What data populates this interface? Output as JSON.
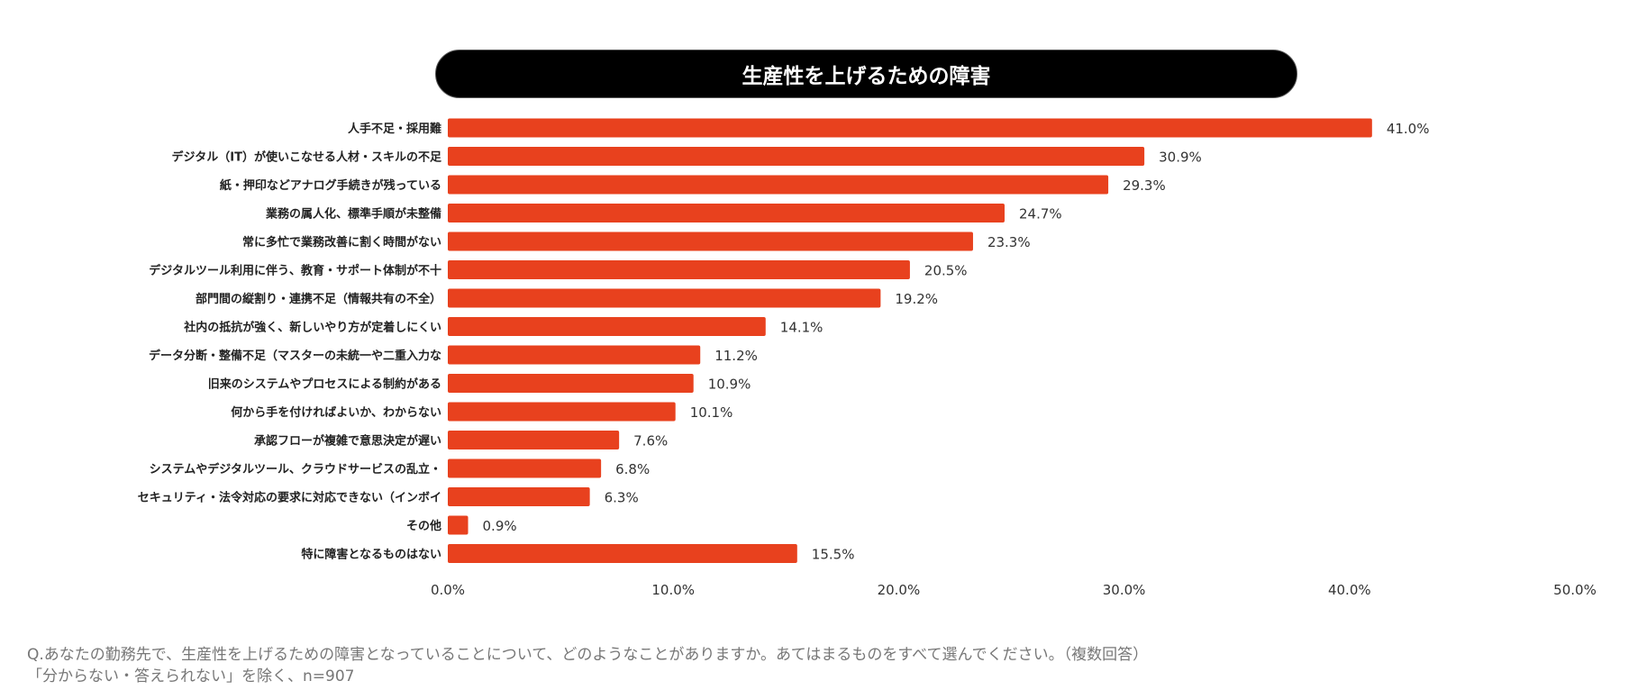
{
  "chart_data": {
    "type": "bar",
    "orientation": "horizontal",
    "title": "生産性を上げるための障害",
    "categories": [
      "人手不足・採用難",
      "デジタル（IT）が使いこなせる人材・スキルの不足",
      "紙・押印などアナログ手続きが残っている",
      "業務の属人化、標準手順が未整備",
      "常に多忙で業務改善に割く時間がない",
      "デジタルツール利用に伴う、教育・サポート体制が不十",
      "部門間の縦割り・連携不足（情報共有の不全）",
      "社内の抵抗が強く、新しいやり方が定着しにくい",
      "データ分断・整備不足（マスターの未統一や二重入力な",
      "旧来のシステムやプロセスによる制約がある",
      "何から手を付ければよいか、わからない",
      "承認フローが複雑で意思決定が遅い",
      "システムやデジタルツール、クラウドサービスの乱立・",
      "セキュリティ・法令対応の要求に対応できない（インボイ",
      "その他",
      "特に障害となるものはない"
    ],
    "values": [
      41.0,
      30.9,
      29.3,
      24.7,
      23.3,
      20.5,
      19.2,
      14.1,
      11.2,
      10.9,
      10.1,
      7.6,
      6.8,
      6.3,
      0.9,
      15.5
    ],
    "value_labels": [
      "41.0%",
      "30.9%",
      "29.3%",
      "24.7%",
      "23.3%",
      "20.5%",
      "19.2%",
      "14.1%",
      "11.2%",
      "10.9%",
      "10.1%",
      "7.6%",
      "6.8%",
      "6.3%",
      "0.9%",
      "15.5%"
    ],
    "xlim": [
      0,
      50
    ],
    "xticks": [
      "0.0%",
      "10.0%",
      "20.0%",
      "30.0%",
      "40.0%",
      "50.0%"
    ],
    "grid": false,
    "bar_color": "#E8411E"
  },
  "footnotes": [
    "Q.あなたの勤務先で、生産性を上げるための障害となっていることについて、どのようなことがありますか。あてはまるものをすべて選んでください。（複数回答）",
    "「分からない・答えられない」を除く、n=907"
  ]
}
